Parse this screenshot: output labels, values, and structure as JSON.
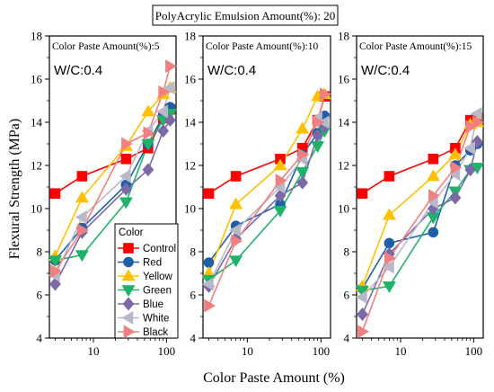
{
  "header_box": "PolyAcrylic Emulsion Amount(%):  20",
  "y_axis_label": "Flexural Strength (MPa)",
  "x_axis_label": "Color Paste Amount (%)",
  "legend_title": "Color",
  "colors": {
    "Control": "#ff0000",
    "Red": "#1f5fa8",
    "Yellow": "#ffc000",
    "Green": "#1fb36a",
    "Blue": "#7b68a6",
    "White": "#b8b8c8",
    "Black": "#f08080"
  },
  "markers": {
    "Control": "square",
    "Red": "circle",
    "Yellow": "triangle-up",
    "Green": "triangle-down",
    "Blue": "diamond",
    "White": "triangle-left",
    "Black": "triangle-right"
  },
  "chart_data": [
    {
      "type": "line",
      "x_scale": "log",
      "annotation": "Color Paste Amount(%):5",
      "wc_label": "W/C:0.4",
      "ylim": [
        4,
        18
      ],
      "x_ticks": [
        "10",
        "100"
      ],
      "y_ticks": [
        "4",
        "6",
        "8",
        "10",
        "12",
        "14",
        "16",
        "18"
      ],
      "series": [
        {
          "name": "Control",
          "x": [
            3,
            7,
            28,
            56,
            90,
            112
          ],
          "values": [
            10.7,
            11.5,
            12.3,
            12.8,
            14.2,
            14.6
          ]
        },
        {
          "name": "Red",
          "x": [
            3,
            7,
            28,
            56,
            90,
            112
          ],
          "values": [
            7.6,
            9.1,
            11.1,
            13.0,
            14.3,
            14.7
          ]
        },
        {
          "name": "Yellow",
          "x": [
            3,
            7,
            28,
            56,
            90,
            112
          ],
          "values": [
            7.8,
            10.5,
            12.9,
            14.5,
            15.3,
            15.6
          ]
        },
        {
          "name": "Green",
          "x": [
            3,
            7,
            28,
            56,
            90,
            112
          ],
          "values": [
            7.6,
            7.85,
            10.3,
            13.0,
            14.1,
            14.4
          ]
        },
        {
          "name": "Blue",
          "x": [
            3,
            7,
            28,
            56,
            90,
            112
          ],
          "values": [
            6.5,
            8.9,
            10.9,
            11.8,
            13.6,
            14.1
          ]
        },
        {
          "name": "White",
          "x": [
            3,
            7,
            28,
            56,
            90,
            112
          ],
          "values": [
            6.9,
            9.6,
            11.5,
            13.6,
            14.5,
            15.6
          ]
        },
        {
          "name": "Black",
          "x": [
            3,
            7,
            28,
            56,
            90,
            112
          ],
          "values": [
            7.1,
            9.0,
            13.0,
            13.5,
            15.4,
            16.6
          ]
        }
      ]
    },
    {
      "type": "line",
      "x_scale": "log",
      "annotation": "Color Paste Amount(%):10",
      "wc_label": "W/C:0.4",
      "ylim": [
        4,
        18
      ],
      "x_ticks": [
        "10",
        "100"
      ],
      "y_ticks": [
        "4",
        "6",
        "8",
        "10",
        "12",
        "14",
        "16",
        "18"
      ],
      "series": [
        {
          "name": "Control",
          "x": [
            3,
            7,
            28,
            56,
            90,
            112
          ],
          "values": [
            10.7,
            11.5,
            12.3,
            12.8,
            14.1,
            15.2
          ]
        },
        {
          "name": "Red",
          "x": [
            3,
            7,
            28,
            56,
            90,
            112
          ],
          "values": [
            7.5,
            9.2,
            10.2,
            12.5,
            13.5,
            14.3
          ]
        },
        {
          "name": "Yellow",
          "x": [
            3,
            7,
            28,
            56,
            90,
            112
          ],
          "values": [
            7.0,
            10.2,
            12.0,
            13.7,
            15.2,
            15.3
          ]
        },
        {
          "name": "Green",
          "x": [
            3,
            7,
            28,
            56,
            90,
            112
          ],
          "values": [
            6.7,
            7.6,
            9.9,
            11.7,
            12.9,
            13.6
          ]
        },
        {
          "name": "Blue",
          "x": [
            3,
            7,
            28,
            56,
            90,
            112
          ],
          "values": [
            6.4,
            8.6,
            10.6,
            11.2,
            13.4,
            13.8
          ]
        },
        {
          "name": "White",
          "x": [
            3,
            7,
            28,
            56,
            90,
            112
          ],
          "values": [
            6.5,
            9.0,
            11.0,
            12.3,
            14.2,
            14.0
          ]
        },
        {
          "name": "Black",
          "x": [
            3,
            7,
            28,
            56,
            90,
            112
          ],
          "values": [
            5.5,
            8.5,
            11.3,
            12.5,
            14.0,
            15.3
          ]
        }
      ]
    },
    {
      "type": "line",
      "x_scale": "log",
      "annotation": "Color Paste Amount(%):15",
      "wc_label": "W/C:0.4",
      "ylim": [
        4,
        18
      ],
      "x_ticks": [
        "10",
        "100"
      ],
      "y_ticks": [
        "4",
        "6",
        "8",
        "10",
        "12",
        "14",
        "16",
        "18"
      ],
      "series": [
        {
          "name": "Control",
          "x": [
            3,
            7,
            28,
            56,
            90,
            112
          ],
          "values": [
            10.7,
            11.5,
            12.3,
            12.8,
            14.1,
            14.2
          ]
        },
        {
          "name": "Red",
          "x": [
            3,
            7,
            28,
            56,
            90,
            112
          ],
          "values": [
            6.3,
            8.4,
            8.9,
            12.0,
            12.7,
            13.0
          ]
        },
        {
          "name": "Yellow",
          "x": [
            3,
            7,
            28,
            56,
            90,
            112
          ],
          "values": [
            6.4,
            9.7,
            11.5,
            12.5,
            13.9,
            14.0
          ]
        },
        {
          "name": "Green",
          "x": [
            3,
            7,
            28,
            56,
            90,
            112
          ],
          "values": [
            6.2,
            6.4,
            9.6,
            10.8,
            11.8,
            11.9
          ]
        },
        {
          "name": "Blue",
          "x": [
            3,
            7,
            28,
            56,
            90,
            112
          ],
          "values": [
            5.1,
            7.9,
            10.0,
            10.5,
            11.8,
            13.1
          ]
        },
        {
          "name": "White",
          "x": [
            3,
            7,
            28,
            56,
            90,
            112
          ],
          "values": [
            5.9,
            7.3,
            10.3,
            11.6,
            12.8,
            14.4
          ]
        },
        {
          "name": "Black",
          "x": [
            3,
            7,
            28,
            56,
            90,
            112
          ],
          "values": [
            4.3,
            7.7,
            10.6,
            11.9,
            13.8,
            14.0
          ]
        }
      ]
    }
  ]
}
